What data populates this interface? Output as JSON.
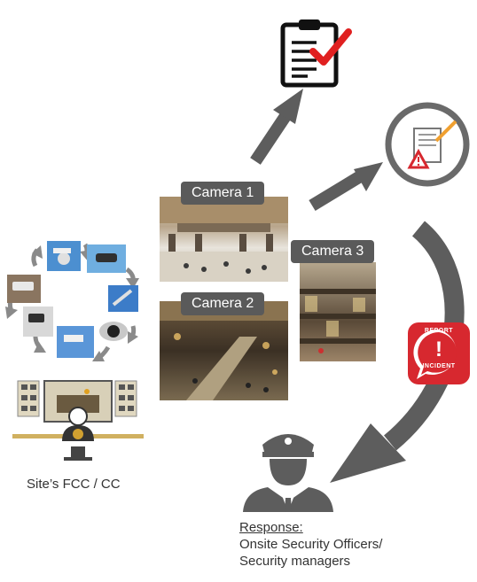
{
  "cameras": [
    {
      "label": "Camera 1"
    },
    {
      "label": "Camera 2"
    },
    {
      "label": "Camera 3"
    }
  ],
  "fcc": {
    "caption": "Site’s FCC / CC"
  },
  "response": {
    "title": "Response:",
    "line1": "Onsite Security Officers/",
    "line2": "Security managers"
  },
  "badge": {
    "top": "REPORT",
    "bottom": "INCIDENT",
    "mark": "!"
  },
  "colors": {
    "arrow": "#5d5d5d",
    "badge_red": "#d7282f",
    "check_red": "#e02020",
    "label_bg": "#5a5a5a"
  },
  "icons": [
    "clipboard-check-icon",
    "warning-report-icon",
    "report-incident-badge-icon",
    "security-officer-icon",
    "cctv-camera-icon",
    "control-room-icon"
  ]
}
